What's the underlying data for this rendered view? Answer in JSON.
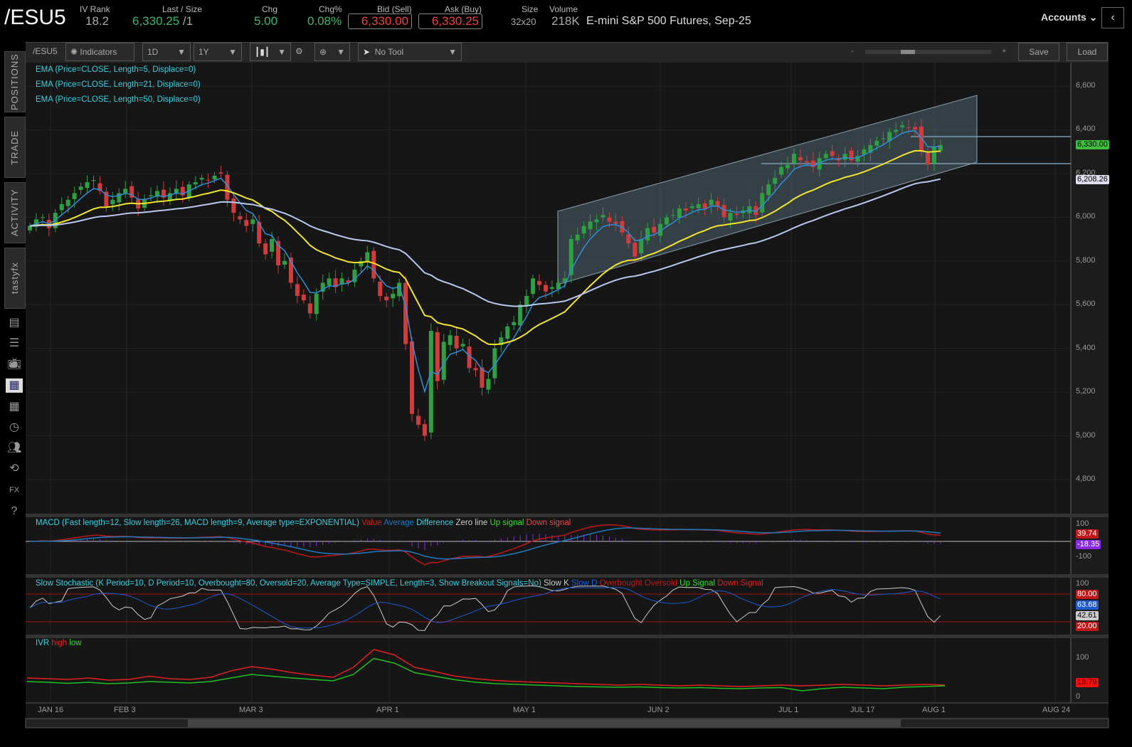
{
  "header": {
    "symbol": "/ESU5",
    "iv_rank_label": "IV Rank",
    "iv_rank": "18.2",
    "last_label": "Last / Size",
    "last": "6,330.25",
    "last_size": "/1",
    "chg_label": "Chg",
    "chg": "5.00",
    "chgpct_label": "Chg%",
    "chgpct": "0.08%",
    "bid_label": "Bid (Sell)",
    "bid": "6,330.00",
    "ask_label": "Ask (Buy)",
    "ask": "6,330.25",
    "size_label": "Size",
    "size": "32x20",
    "volume_label": "Volume",
    "volume": "218K",
    "description": "E-mini S&P 500 Futures, Sep-25",
    "accounts": "Accounts"
  },
  "toolbar": {
    "symbol": "/ESU5",
    "indicators": "Indicators",
    "interval": "1D",
    "range": "1Y",
    "tool": "No Tool",
    "zoom_minus": "-",
    "zoom_plus": "+",
    "save": "Save",
    "load": "Load"
  },
  "sidebar": {
    "tabs": [
      "POSITIONS",
      "TRADE",
      "ACTIVITY",
      "tastyfx"
    ],
    "icons": [
      "news-icon",
      "list-icon",
      "tv-icon",
      "chart-icon",
      "grid-icon",
      "clock-icon",
      "community-icon",
      "history-icon",
      "fx-icon",
      "help-icon"
    ]
  },
  "studies": {
    "ema5": "EMA (Price=CLOSE, Length=5, Displace=0)",
    "ema21": "EMA (Price=CLOSE, Length=21, Displace=0)",
    "ema50": "EMA (Price=CLOSE, Length=50, Displace=0)",
    "macd": {
      "title": "MACD (Fast length=12, Slow length=26, MACD length=9, Average type=EXPONENTIAL)",
      "items": [
        "Value",
        "Average",
        "Difference",
        "Zero line",
        "Up signal",
        "Down signal"
      ]
    },
    "stoch": {
      "title": "Slow Stochastic (K Period=10, D Period=10, Overbought=80, Oversold=20, Average Type=SIMPLE, Length=3, Show Breakout Signals=No)",
      "items": [
        "Slow K",
        "Slow D",
        "Overbought",
        "Oversold",
        "Up Signal",
        "Down Signal"
      ]
    },
    "ivr": {
      "title": "IVR",
      "items": [
        "high",
        "low"
      ]
    }
  },
  "colors": {
    "up": "#2ea043",
    "down": "#d03c3c",
    "ema5": "#2f8fd8",
    "ema21": "#f2e52a",
    "ema50": "#b8c8f0",
    "accent": "#3ad0e0"
  },
  "chart_data": {
    "type": "candlestick",
    "price_ticks": [
      "6,600",
      "6,400",
      "6,200",
      "6,000",
      "5,800",
      "5,600",
      "5,400",
      "5,200",
      "5,000",
      "4,800"
    ],
    "x_ticks": [
      "JAN 16",
      "FEB 3",
      "MAR 3",
      "APR 1",
      "MAY 1",
      "JUN 2",
      "JUL 1",
      "JUL 17",
      "AUG 1",
      "AUG 24"
    ],
    "last_price_tag": "6,330.00",
    "support_tag": "6,208.26",
    "macd_ticks": [
      "100",
      "-100"
    ],
    "macd_tags": [
      "39.74",
      "-18.35"
    ],
    "stoch_ticks": [
      "100"
    ],
    "stoch_tags": [
      "80.00",
      "63.68",
      "42.61",
      "20.00"
    ],
    "ivr_ticks": [
      "100",
      "0"
    ],
    "ivr_tag": "18.79",
    "closes": [
      5960,
      5990,
      6000,
      5950,
      6020,
      6060,
      6080,
      6110,
      6140,
      6160,
      6170,
      6120,
      6050,
      6080,
      6110,
      6130,
      6090,
      6040,
      6080,
      6100,
      6120,
      6090,
      6110,
      6130,
      6100,
      6150,
      6160,
      6180,
      6170,
      6190,
      6200,
      6080,
      6020,
      5990,
      5960,
      5990,
      5880,
      5830,
      5900,
      5780,
      5800,
      5700,
      5640,
      5620,
      5560,
      5650,
      5700,
      5720,
      5680,
      5720,
      5700,
      5760,
      5800,
      5840,
      5720,
      5640,
      5620,
      5650,
      5700,
      5420,
      5100,
      5050,
      5000,
      5480,
      5250,
      5430,
      5460,
      5400,
      5420,
      5310,
      5300,
      5220,
      5260,
      5400,
      5450,
      5500,
      5520,
      5600,
      5640,
      5720,
      5690,
      5660,
      5680,
      5700,
      5720,
      5900,
      5920,
      5960,
      5980,
      5990,
      6010,
      5980,
      5970,
      5930,
      5880,
      5820,
      5900,
      5950,
      5930,
      5970,
      6000,
      6010,
      6040,
      6030,
      6050,
      6060,
      6040,
      6080,
      6050,
      6000,
      6020,
      6010,
      6030,
      6050,
      6010,
      6110,
      6150,
      6180,
      6230,
      6240,
      6290,
      6260,
      6250,
      6230,
      6270,
      6290,
      6280,
      6260,
      6290,
      6260,
      6280,
      6310,
      6330,
      6350,
      6360,
      6390,
      6400,
      6420,
      6410,
      6400,
      6300,
      6240,
      6320,
      6330
    ],
    "ivr_high": [
      40,
      38,
      36,
      40,
      34,
      36,
      45,
      38,
      36,
      42,
      60,
      72,
      65,
      55,
      48,
      42,
      70,
      120,
      105,
      70,
      58,
      45,
      38,
      33,
      30,
      28,
      26,
      24,
      22,
      20,
      22,
      20,
      18,
      20,
      18,
      16,
      18,
      20,
      18,
      20,
      22,
      20,
      18,
      20,
      22,
      20
    ],
    "ivr_low": [
      30,
      28,
      25,
      28,
      24,
      26,
      30,
      28,
      26,
      30,
      40,
      50,
      45,
      40,
      36,
      32,
      50,
      95,
      82,
      55,
      45,
      35,
      28,
      24,
      22,
      20,
      18,
      16,
      15,
      14,
      15,
      13,
      12,
      13,
      11,
      10,
      12,
      13,
      4,
      10,
      14,
      12,
      10,
      14,
      16,
      18
    ]
  }
}
